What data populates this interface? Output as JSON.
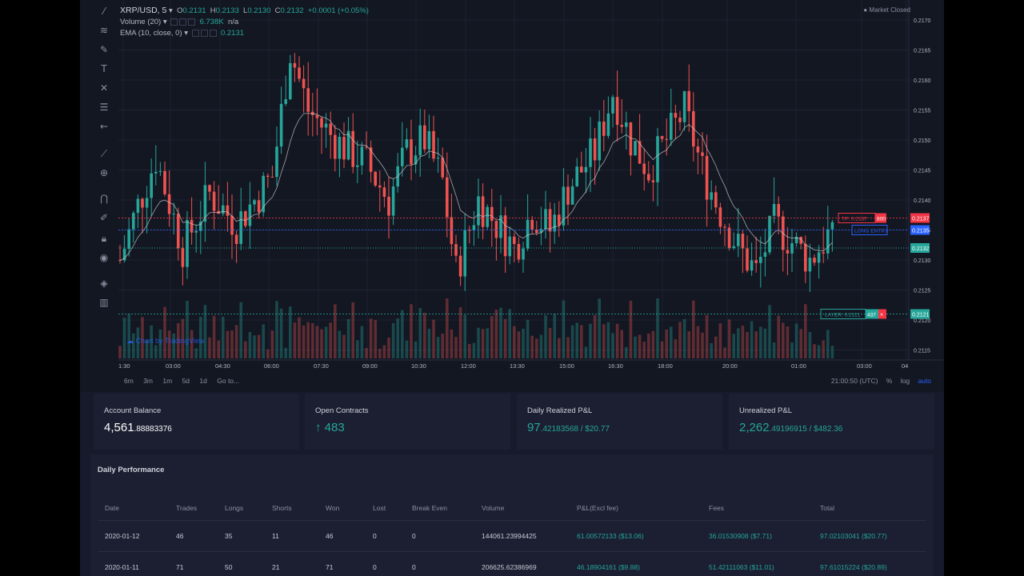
{
  "chart": {
    "symbol": "XRP/USD, 5",
    "ohlc": {
      "o_label": "O",
      "o": "0.2131",
      "h_label": "H",
      "h": "0.2133",
      "l_label": "L",
      "l": "0.2130",
      "c_label": "C",
      "c": "0.2132",
      "change": "+0.0001 (+0.05%)"
    },
    "volume_label": "Volume (20)",
    "volume_value": "6.738K",
    "volume_na": "n/a",
    "ema_label": "EMA (10, close, 0)",
    "ema_value": "0.2131",
    "market_status": "Market Closed",
    "watermark": "Chart by TradingView",
    "timeframes": [
      "6m",
      "3m",
      "1m",
      "5d",
      "1d"
    ],
    "goto": "Go to...",
    "time_readout": "21:00:50 (UTC)",
    "percent": "%",
    "log": "log",
    "auto": "auto",
    "time_labels": [
      "1:30",
      "03:00",
      "04:30",
      "06:00",
      "07:30",
      "09:00",
      "10:30",
      "12:00",
      "13:30",
      "15:00",
      "16:30",
      "18:00",
      "20:00",
      "01:00",
      "03:00",
      "04"
    ],
    "price_labels": [
      "0.2170",
      "0.2165",
      "0.2160",
      "0.2155",
      "0.2150",
      "0.2145",
      "0.2140",
      "0.2135",
      "0.2130",
      "0.2125",
      "0.2120",
      "0.2115"
    ],
    "colors": {
      "up": "#26a69a",
      "down": "#ef5350",
      "tp": "#f23645",
      "entry": "#2962ff",
      "layer": "#26a69a",
      "ema": "#c8c8c8"
    },
    "tp_order": {
      "label": "TP: 0.2137",
      "qty": "800",
      "price": "0.2137"
    },
    "entry_order": {
      "label": "LONG ENTRY",
      "price": "0.2135"
    },
    "last_price": "0.2132",
    "layer_order": {
      "label": "LAYER: 0.2121",
      "qty": "437",
      "close": "×",
      "price": "0.2121"
    }
  },
  "chart_data": {
    "type": "candlestick",
    "symbol": "XRP/USD",
    "ylim": [
      0.2112,
      0.2172
    ],
    "series": [
      {
        "name": "Volume (20)"
      },
      {
        "name": "EMA (10, close, 0)"
      }
    ],
    "price_path": [
      [
        0,
        0.213
      ],
      [
        4,
        0.2139
      ],
      [
        8,
        0.2147
      ],
      [
        14,
        0.2132
      ],
      [
        20,
        0.2141
      ],
      [
        26,
        0.2136
      ],
      [
        30,
        0.214
      ],
      [
        34,
        0.2144
      ],
      [
        38,
        0.2165
      ],
      [
        42,
        0.2155
      ],
      [
        48,
        0.215
      ],
      [
        55,
        0.2146
      ],
      [
        60,
        0.214
      ],
      [
        64,
        0.2148
      ],
      [
        68,
        0.215
      ],
      [
        72,
        0.2143
      ],
      [
        75,
        0.2128
      ],
      [
        80,
        0.214
      ],
      [
        84,
        0.2136
      ],
      [
        88,
        0.2132
      ],
      [
        92,
        0.2138
      ],
      [
        96,
        0.2135
      ],
      [
        100,
        0.2142
      ],
      [
        106,
        0.2148
      ],
      [
        110,
        0.2158
      ],
      [
        114,
        0.215
      ],
      [
        118,
        0.2145
      ],
      [
        122,
        0.215
      ],
      [
        126,
        0.2155
      ],
      [
        130,
        0.2145
      ],
      [
        134,
        0.2138
      ],
      [
        138,
        0.2132
      ],
      [
        142,
        0.2128
      ],
      [
        146,
        0.2136
      ],
      [
        150,
        0.2133
      ],
      [
        154,
        0.213
      ],
      [
        158,
        0.2134
      ],
      [
        160,
        0.2132
      ]
    ]
  },
  "cards": [
    {
      "label": "Account Balance",
      "main": "4,561",
      "decimals": ".88883376",
      "suffix": ""
    },
    {
      "label": "Open Contracts",
      "main": "↑ 483",
      "decimals": "",
      "suffix": ""
    },
    {
      "label": "Daily Realized P&L",
      "main": "97",
      "decimals": ".42183568",
      "suffix": " / $20.77"
    },
    {
      "label": "Unrealized P&L",
      "main": "2,262",
      "decimals": ".49196915",
      "suffix": " / $482.36"
    }
  ],
  "performance": {
    "title": "Daily Performance",
    "columns": [
      "Date",
      "Trades",
      "Longs",
      "Shorts",
      "Won",
      "Lost",
      "Break Even",
      "Volume",
      "P&L(Excl fee)",
      "Fees",
      "Total"
    ],
    "rows": [
      [
        "2020-01-12",
        "46",
        "35",
        "11",
        "46",
        "0",
        "0",
        "144061.23994425",
        "61.00572133 ($13.06)",
        "36.01530908 ($7.71)",
        "97.02103041 ($20.77)"
      ],
      [
        "2020-01-11",
        "71",
        "50",
        "21",
        "71",
        "0",
        "0",
        "206625.62386969",
        "46.18904161 ($9.88)",
        "51.42111063 ($11.01)",
        "97.61015224 ($20.89)"
      ]
    ]
  }
}
